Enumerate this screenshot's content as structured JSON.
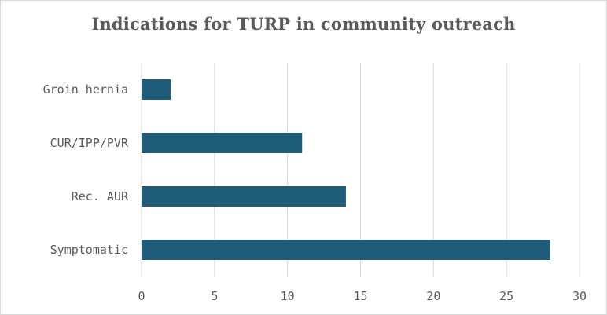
{
  "chart_data": {
    "type": "bar",
    "orientation": "horizontal",
    "title": "Indications for TURP in community outreach",
    "xlabel": "",
    "ylabel": "",
    "categories": [
      "Symptomatic",
      "Rec. AUR",
      "CUR/IPP/PVR",
      "Groin hernia"
    ],
    "values": [
      28,
      14,
      11,
      2
    ],
    "xlim": [
      0,
      30
    ],
    "x_ticks": [
      "0",
      "5",
      "10",
      "15",
      "20",
      "25",
      "30"
    ],
    "grid": "vertical",
    "legend": "none",
    "bar_color": "#1f5c7a"
  }
}
